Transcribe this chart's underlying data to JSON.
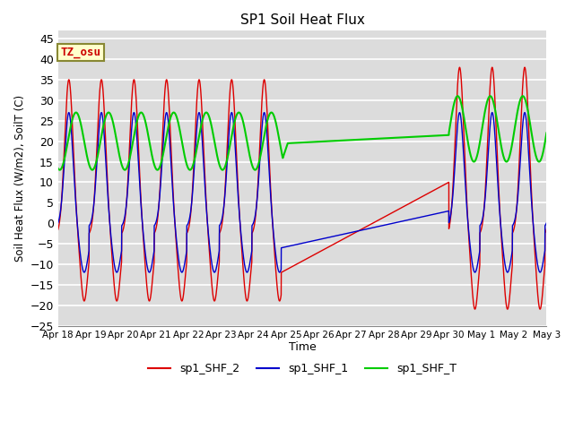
{
  "title": "SP1 Soil Heat Flux",
  "xlabel": "Time",
  "ylabel": "Soil Heat Flux (W/m2), SoilT (C)",
  "ylim": [
    -25,
    47
  ],
  "xlim_days": [
    0,
    15
  ],
  "background_color": "#dcdcdc",
  "grid_color": "white",
  "annotation_text": "TZ_osu",
  "annotation_bg": "#ffffcc",
  "annotation_border": "#aaaa00",
  "colors": {
    "sp1_SHF_2": "#dd0000",
    "sp1_SHF_1": "#0000cc",
    "sp1_SHF_T": "#00cc00"
  },
  "tick_labels": [
    "Apr 18",
    "Apr 19",
    "Apr 20",
    "Apr 21",
    "Apr 22",
    "Apr 23",
    "Apr 24",
    "Apr 25",
    "Apr 26",
    "Apr 27",
    "Apr 28",
    "Apr 29",
    "Apr 30",
    "May 1",
    "May 2",
    "May 3"
  ],
  "tick_positions": [
    0,
    1,
    2,
    3,
    4,
    5,
    6,
    7,
    8,
    9,
    10,
    11,
    12,
    13,
    14,
    15
  ],
  "yticks": [
    -25,
    -20,
    -15,
    -10,
    -5,
    0,
    5,
    10,
    15,
    20,
    25,
    30,
    35,
    40,
    45
  ]
}
